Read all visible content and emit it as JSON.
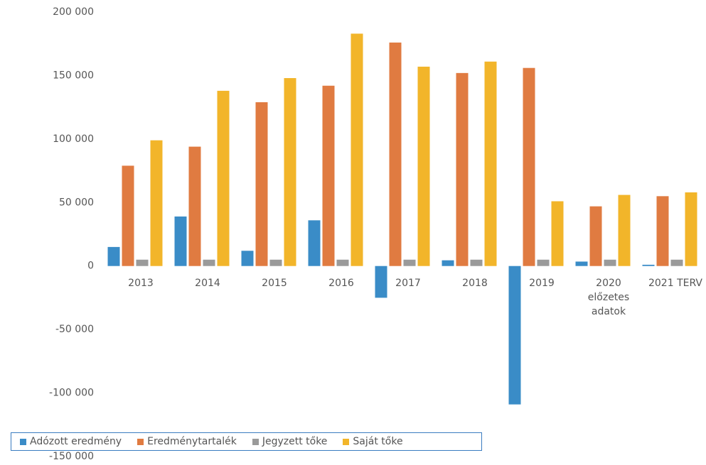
{
  "chart_data": {
    "type": "bar",
    "categories": [
      "2013",
      "2014",
      "2015",
      "2016",
      "2017",
      "2018",
      "2019",
      "2020\nelőzetes\nadatok",
      "2021 TERV"
    ],
    "series": [
      {
        "name": "Adózott eredmény",
        "color": "#3a8cc7",
        "values": [
          15000,
          39000,
          12000,
          36000,
          -25000,
          4500,
          -109000,
          3500,
          1000
        ]
      },
      {
        "name": "Eredménytartalék",
        "color": "#e07b41",
        "values": [
          79000,
          94000,
          129000,
          142000,
          176000,
          152000,
          156000,
          47000,
          55000
        ]
      },
      {
        "name": "Jegyzett tőke",
        "color": "#9a9a9a",
        "values": [
          5000,
          5000,
          5000,
          5000,
          5000,
          5000,
          5000,
          5000,
          5000
        ]
      },
      {
        "name": "Saját tőke",
        "color": "#f2b52a",
        "values": [
          99000,
          138000,
          148000,
          183000,
          157000,
          161000,
          51000,
          56000,
          58000
        ]
      }
    ],
    "ylim": [
      -150000,
      200000
    ],
    "yticks": [
      {
        "value": -150000,
        "label": "-150 000"
      },
      {
        "value": -100000,
        "label": "-100 000"
      },
      {
        "value": -50000,
        "label": "-50 000"
      },
      0,
      {
        "value": 50000,
        "label": "50 000"
      },
      {
        "value": 100000,
        "label": "100 000"
      },
      {
        "value": 150000,
        "label": "150 000"
      },
      {
        "value": 200000,
        "label": "200 000"
      }
    ],
    "grid": false,
    "legend": "bottom"
  }
}
